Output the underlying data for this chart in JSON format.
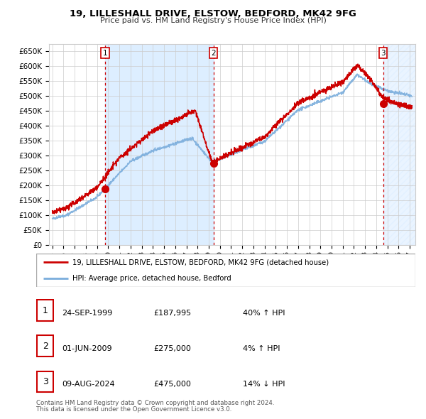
{
  "title": "19, LILLESHALL DRIVE, ELSTOW, BEDFORD, MK42 9FG",
  "subtitle": "Price paid vs. HM Land Registry's House Price Index (HPI)",
  "ylabel_ticks": [
    "£0",
    "£50K",
    "£100K",
    "£150K",
    "£200K",
    "£250K",
    "£300K",
    "£350K",
    "£400K",
    "£450K",
    "£500K",
    "£550K",
    "£600K",
    "£650K"
  ],
  "ytick_vals": [
    0,
    50000,
    100000,
    150000,
    200000,
    250000,
    300000,
    350000,
    400000,
    450000,
    500000,
    550000,
    600000,
    650000
  ],
  "ylim": [
    0,
    675000
  ],
  "xlim_start": 1994.7,
  "xlim_end": 2027.5,
  "sale_dates": [
    1999.73,
    2009.42,
    2024.61
  ],
  "sale_prices": [
    187995,
    275000,
    475000
  ],
  "sale_labels": [
    "1",
    "2",
    "3"
  ],
  "legend_line1": "19, LILLESHALL DRIVE, ELSTOW, BEDFORD, MK42 9FG (detached house)",
  "legend_line2": "HPI: Average price, detached house, Bedford",
  "table_rows": [
    [
      "1",
      "24-SEP-1999",
      "£187,995",
      "40% ↑ HPI"
    ],
    [
      "2",
      "01-JUN-2009",
      "£275,000",
      "4% ↑ HPI"
    ],
    [
      "3",
      "09-AUG-2024",
      "£475,000",
      "14% ↓ HPI"
    ]
  ],
  "footer_line1": "Contains HM Land Registry data © Crown copyright and database right 2024.",
  "footer_line2": "This data is licensed under the Open Government Licence v3.0.",
  "line_color": "#cc0000",
  "hpi_color": "#7aaddc",
  "hpi_fill_color": "#ddeeff",
  "grid_color": "#cccccc",
  "dashed_line_color": "#cc0000",
  "bg_color": "#ffffff"
}
